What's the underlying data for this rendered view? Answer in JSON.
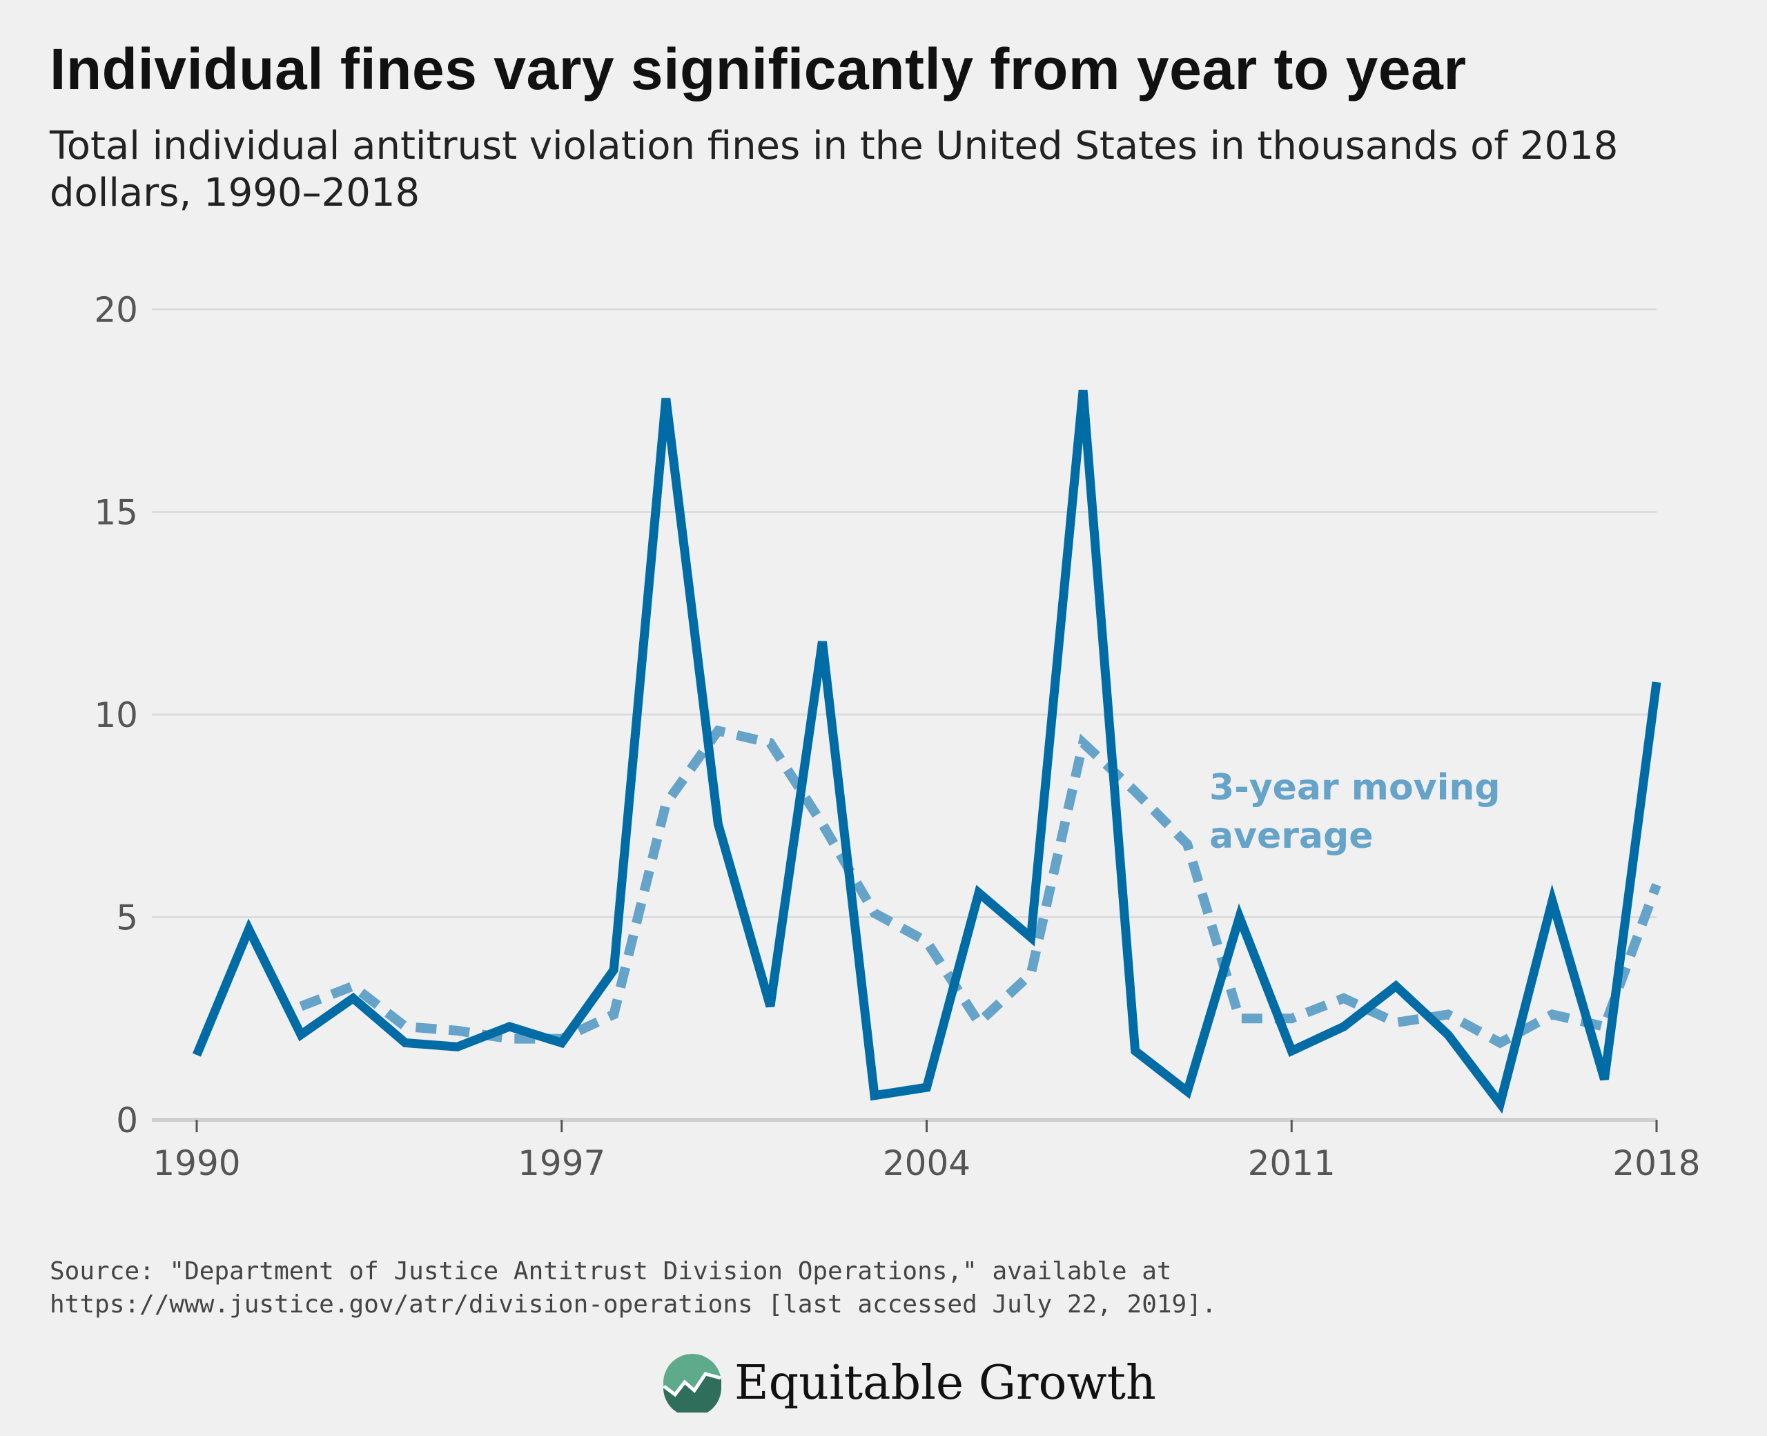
{
  "header": {
    "title": "Individual fines vary significantly from year to year",
    "subtitle": "Total individual antitrust violation fines in the United States in thousands of 2018 dollars, 1990–2018"
  },
  "chart_data": {
    "type": "line",
    "title": "Individual fines vary significantly from year to year",
    "subtitle": "Total individual antitrust violation fines in the United States in thousands of 2018 dollars, 1990–2018",
    "x": [
      1990,
      1991,
      1992,
      1993,
      1994,
      1995,
      1996,
      1997,
      1998,
      1999,
      2000,
      2001,
      2002,
      2003,
      2004,
      2005,
      2006,
      2007,
      2008,
      2009,
      2010,
      2011,
      2012,
      2013,
      2014,
      2015,
      2016,
      2017,
      2018
    ],
    "series": [
      {
        "name": "",
        "style": "solid",
        "color": "#006ca6",
        "values": [
          1.6,
          4.7,
          2.1,
          3.0,
          1.9,
          1.8,
          2.3,
          1.9,
          3.7,
          17.8,
          7.3,
          2.8,
          11.8,
          0.6,
          0.8,
          5.6,
          4.5,
          18.0,
          1.7,
          0.7,
          5.0,
          1.7,
          2.3,
          3.3,
          2.1,
          0.4,
          5.4,
          1.0,
          10.8
        ]
      },
      {
        "name": "3-year moving average",
        "style": "dashed",
        "color": "#66a3c8",
        "values": [
          null,
          null,
          2.8,
          3.3,
          2.3,
          2.2,
          2.0,
          2.0,
          2.6,
          7.8,
          9.6,
          9.3,
          7.3,
          5.1,
          4.4,
          2.4,
          3.6,
          9.3,
          8.1,
          6.8,
          2.5,
          2.5,
          3.0,
          2.4,
          2.6,
          1.9,
          2.6,
          2.3,
          5.8
        ]
      }
    ],
    "xticks": [
      "1990",
      "1997",
      "2004",
      "2011",
      "2018"
    ],
    "yticks": [
      "0",
      "5",
      "10",
      "15",
      "20"
    ],
    "xlim": [
      1990,
      2018
    ],
    "ylim": [
      0,
      20
    ],
    "xlabel": "",
    "ylabel": "",
    "grid": "horizontal",
    "annotation": {
      "lines": [
        "3-year moving",
        "average"
      ]
    }
  },
  "footer": {
    "source_line1": "Source: \"Department of Justice Antitrust Division Operations,\" available at",
    "source_line2": "https://www.justice.gov/atr/division-operations [last accessed July 22, 2019].",
    "logo_text": "Equitable Growth"
  },
  "colors": {
    "background": "#f0f0f0",
    "primary_line": "#006ca6",
    "moving_average": "#66a3c8",
    "grid": "#dcdcdc",
    "logo_green": "#5dab8a"
  }
}
